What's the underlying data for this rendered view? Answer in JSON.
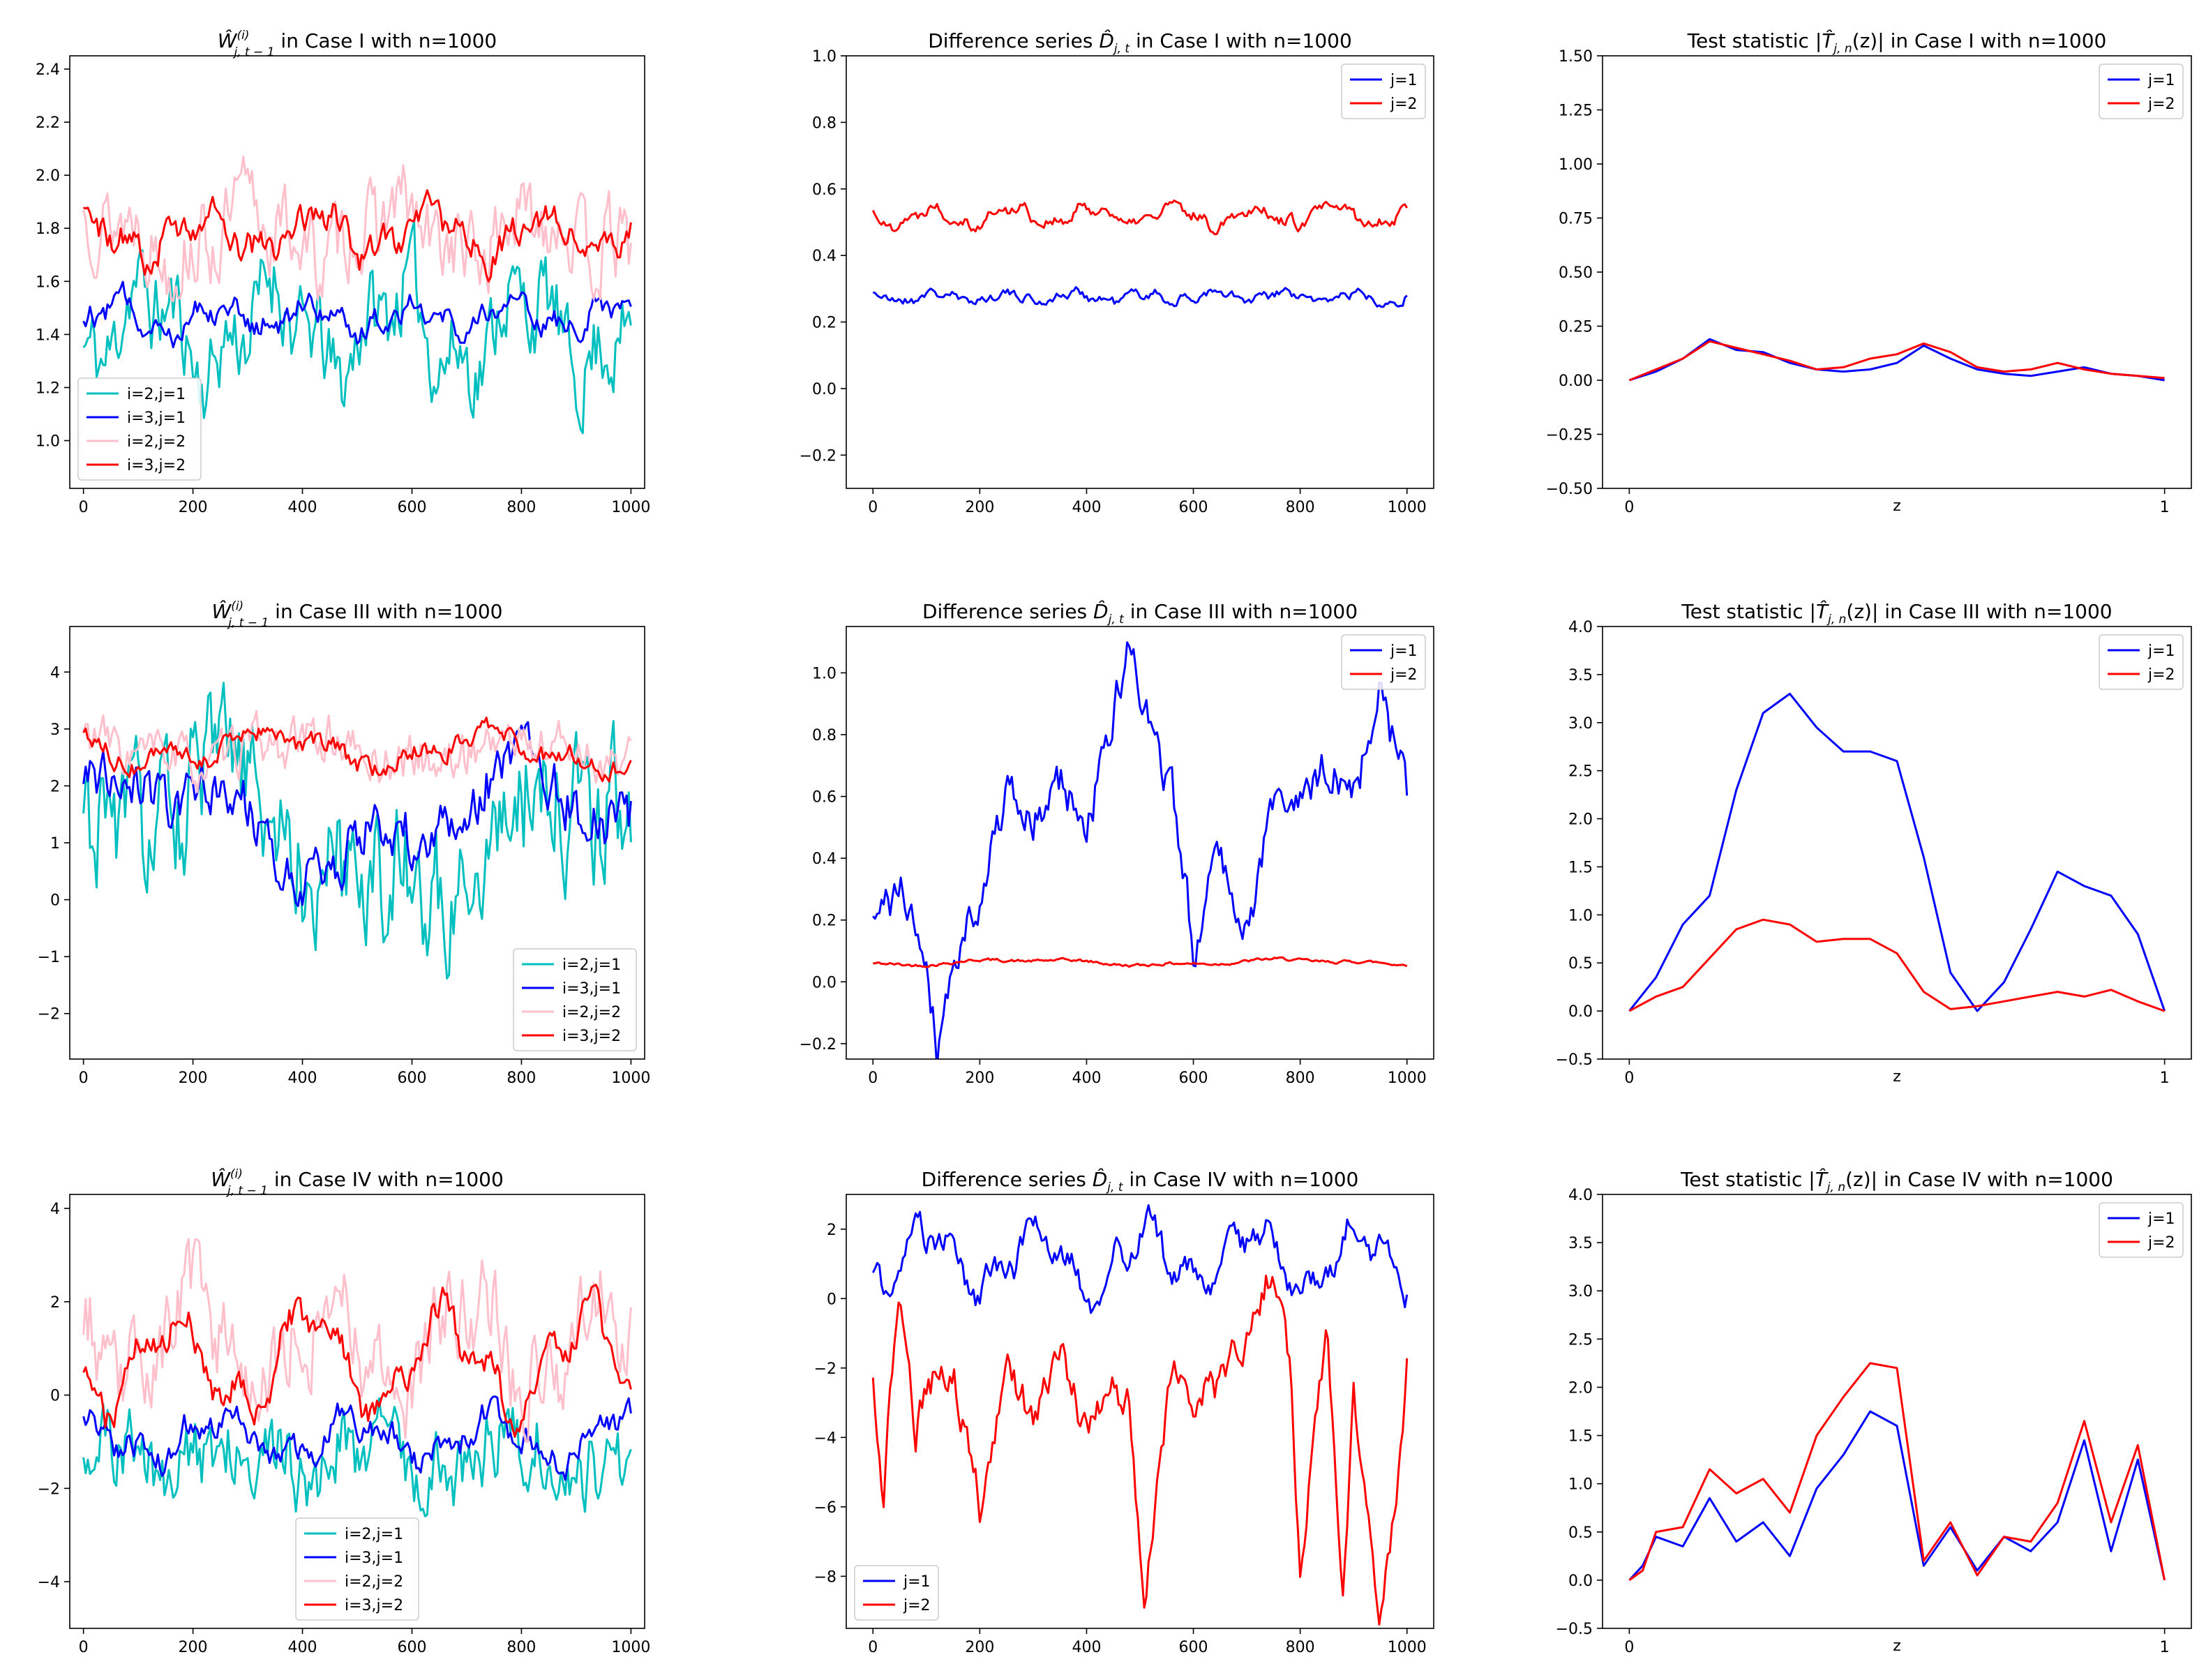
{
  "figure": {
    "background": "#ffffff"
  },
  "chart_data": [
    {
      "type": "line",
      "title": "W^(i)_{j,t−1} in Case I with n=1000",
      "title_parts": {
        "sym": "W",
        "sup": "(i)",
        "sub": "j, t − 1",
        "rest": " in Case I with n=1000"
      },
      "xlabel": "",
      "ylabel": "",
      "xlim": [
        -25,
        1025
      ],
      "ylim": [
        0.82,
        2.45
      ],
      "xticks": [
        0,
        200,
        400,
        600,
        800,
        1000
      ],
      "yticks": [
        1.0,
        1.2,
        1.4,
        1.6,
        1.8,
        2.0,
        2.2,
        2.4
      ],
      "legend_position": "lower-left",
      "series": [
        {
          "name": "i=2,j=1",
          "color": "#00bfbf",
          "gen": {
            "mean": 1.42,
            "amp": 0.14,
            "noise": 0.14,
            "period": 230,
            "seed": 11
          }
        },
        {
          "name": "i=3,j=1",
          "color": "#0000ff",
          "gen": {
            "mean": 1.47,
            "amp": 0.05,
            "noise": 0.04,
            "period": 180,
            "seed": 12
          }
        },
        {
          "name": "i=2,j=2",
          "color": "#ffc0cb",
          "gen": {
            "mean": 1.78,
            "amp": 0.08,
            "noise": 0.13,
            "period": 260,
            "seed": 13
          }
        },
        {
          "name": "i=3,j=2",
          "color": "#ff0000",
          "gen": {
            "mean": 1.78,
            "amp": 0.07,
            "noise": 0.05,
            "period": 210,
            "seed": 14
          }
        }
      ]
    },
    {
      "type": "line",
      "title": "Difference series D_{j,t} in Case I with n=1000",
      "title_parts": {
        "pre": "Difference series ",
        "sym": "D",
        "sub": "j, t",
        "rest": " in Case I with n=1000"
      },
      "xlabel": "",
      "ylabel": "",
      "xlim": [
        -50,
        1050
      ],
      "ylim": [
        -0.3,
        1.0
      ],
      "xticks": [
        0,
        200,
        400,
        600,
        800,
        1000
      ],
      "yticks": [
        -0.2,
        0.0,
        0.2,
        0.4,
        0.6,
        0.8,
        1.0
      ],
      "legend_position": "top-right",
      "series": [
        {
          "name": "j=1",
          "color": "#0000ff",
          "gen": {
            "mean": 0.275,
            "amp": 0.012,
            "noise": 0.012,
            "period": 130,
            "seed": 21
          }
        },
        {
          "name": "j=2",
          "color": "#ff0000",
          "gen": {
            "mean": 0.52,
            "amp": 0.025,
            "noise": 0.015,
            "period": 150,
            "seed": 22
          }
        }
      ]
    },
    {
      "type": "line",
      "title": "Test statistic |T_{j,n}(z)| in Case I with n=1000",
      "title_parts": {
        "pre": "Test statistic |",
        "sym": "T",
        "sub": "j, n",
        "rest": "(z)| in Case I with n=1000"
      },
      "xlabel": "z",
      "ylabel": "",
      "xlim": [
        -0.05,
        1.05
      ],
      "ylim": [
        -0.5,
        1.5
      ],
      "xticks": [
        0,
        1
      ],
      "yticks": [
        -0.5,
        -0.25,
        0.0,
        0.25,
        0.5,
        0.75,
        1.0,
        1.25,
        1.5
      ],
      "legend_position": "top-right",
      "series": [
        {
          "name": "j=1",
          "color": "#0000ff",
          "x": [
            0,
            0.05,
            0.1,
            0.15,
            0.2,
            0.25,
            0.3,
            0.35,
            0.4,
            0.45,
            0.5,
            0.55,
            0.6,
            0.65,
            0.7,
            0.75,
            0.8,
            0.85,
            0.9,
            0.95,
            1.0
          ],
          "y": [
            0.0,
            0.04,
            0.1,
            0.19,
            0.14,
            0.13,
            0.08,
            0.05,
            0.04,
            0.05,
            0.08,
            0.16,
            0.1,
            0.05,
            0.03,
            0.02,
            0.04,
            0.06,
            0.03,
            0.02,
            0.0
          ]
        },
        {
          "name": "j=2",
          "color": "#ff0000",
          "x": [
            0,
            0.05,
            0.1,
            0.15,
            0.2,
            0.25,
            0.3,
            0.35,
            0.4,
            0.45,
            0.5,
            0.55,
            0.6,
            0.65,
            0.7,
            0.75,
            0.8,
            0.85,
            0.9,
            0.95,
            1.0
          ],
          "y": [
            0.0,
            0.05,
            0.1,
            0.18,
            0.15,
            0.12,
            0.09,
            0.05,
            0.06,
            0.1,
            0.12,
            0.17,
            0.13,
            0.06,
            0.04,
            0.05,
            0.08,
            0.05,
            0.03,
            0.02,
            0.01
          ]
        }
      ]
    },
    {
      "type": "line",
      "title": "W^(i)_{j,t−1} in Case III with n=1000",
      "title_parts": {
        "sym": "W",
        "sup": "(i)",
        "sub": "j, t − 1",
        "rest": " in Case III with n=1000"
      },
      "xlabel": "",
      "ylabel": "",
      "xlim": [
        -25,
        1025
      ],
      "ylim": [
        -2.8,
        4.8
      ],
      "xticks": [
        0,
        200,
        400,
        600,
        800,
        1000
      ],
      "yticks": [
        -2,
        -1,
        0,
        1,
        2,
        3,
        4
      ],
      "legend_position": "lower-right",
      "series": [
        {
          "name": "i=2,j=1",
          "color": "#00bfbf",
          "gen": {
            "mean": 1.1,
            "amp": 0.9,
            "noise": 1.0,
            "period": 700,
            "seed": 31
          }
        },
        {
          "name": "i=3,j=1",
          "color": "#0000ff",
          "gen": {
            "mean": 1.4,
            "amp": 0.7,
            "noise": 0.4,
            "period": 700,
            "seed": 32
          }
        },
        {
          "name": "i=2,j=2",
          "color": "#ffc0cb",
          "gen": {
            "mean": 2.6,
            "amp": 0.2,
            "noise": 0.35,
            "period": 400,
            "seed": 33
          }
        },
        {
          "name": "i=3,j=2",
          "color": "#ff0000",
          "gen": {
            "mean": 2.65,
            "amp": 0.25,
            "noise": 0.15,
            "period": 400,
            "seed": 34
          }
        }
      ]
    },
    {
      "type": "line",
      "title": "Difference series D_{j,t} in Case III with n=1000",
      "title_parts": {
        "pre": "Difference series ",
        "sym": "D",
        "sub": "j, t",
        "rest": " in Case III with n=1000"
      },
      "xlabel": "",
      "ylabel": "",
      "xlim": [
        -50,
        1050
      ],
      "ylim": [
        -0.25,
        1.15
      ],
      "xticks": [
        0,
        200,
        400,
        600,
        800,
        1000
      ],
      "yticks": [
        -0.2,
        0.0,
        0.2,
        0.4,
        0.6,
        0.8,
        1.0
      ],
      "legend_position": "top-right",
      "series": [
        {
          "name": "j=1",
          "color": "#0000ff",
          "x": [
            0,
            50,
            100,
            120,
            150,
            200,
            250,
            300,
            350,
            400,
            450,
            480,
            520,
            560,
            600,
            650,
            700,
            750,
            800,
            850,
            900,
            950,
            1000
          ],
          "y": [
            0.17,
            0.3,
            0.1,
            -0.2,
            0.05,
            0.3,
            0.6,
            0.5,
            0.65,
            0.5,
            0.85,
            1.1,
            0.8,
            0.6,
            0.12,
            0.45,
            0.15,
            0.6,
            0.55,
            0.7,
            0.6,
            0.95,
            0.6
          ],
          "gen": {
            "noise": 0.06,
            "seed": 41
          }
        },
        {
          "name": "j=2",
          "color": "#ff0000",
          "gen": {
            "mean": 0.063,
            "amp": 0.008,
            "noise": 0.004,
            "period": 500,
            "seed": 42
          }
        }
      ]
    },
    {
      "type": "line",
      "title": "Test statistic |T_{j,n}(z)| in Case III with n=1000",
      "title_parts": {
        "pre": "Test statistic |",
        "sym": "T",
        "sub": "j, n",
        "rest": "(z)| in Case III with n=1000"
      },
      "xlabel": "z",
      "ylabel": "",
      "xlim": [
        -0.05,
        1.05
      ],
      "ylim": [
        -0.5,
        4.0
      ],
      "xticks": [
        0,
        1
      ],
      "yticks": [
        -0.5,
        0.0,
        0.5,
        1.0,
        1.5,
        2.0,
        2.5,
        3.0,
        3.5,
        4.0
      ],
      "legend_position": "top-right",
      "series": [
        {
          "name": "j=1",
          "color": "#0000ff",
          "x": [
            0,
            0.05,
            0.1,
            0.15,
            0.2,
            0.25,
            0.3,
            0.35,
            0.4,
            0.45,
            0.5,
            0.55,
            0.6,
            0.65,
            0.7,
            0.75,
            0.8,
            0.85,
            0.9,
            0.95,
            1.0
          ],
          "y": [
            0.0,
            0.35,
            0.9,
            1.2,
            2.3,
            3.1,
            3.3,
            2.95,
            2.7,
            2.7,
            2.6,
            1.6,
            0.4,
            0.0,
            0.3,
            0.85,
            1.45,
            1.3,
            1.2,
            0.8,
            0.0
          ]
        },
        {
          "name": "j=2",
          "color": "#ff0000",
          "x": [
            0,
            0.05,
            0.1,
            0.15,
            0.2,
            0.25,
            0.3,
            0.35,
            0.4,
            0.45,
            0.5,
            0.55,
            0.6,
            0.65,
            0.7,
            0.75,
            0.8,
            0.85,
            0.9,
            0.95,
            1.0
          ],
          "y": [
            0.0,
            0.15,
            0.25,
            0.55,
            0.85,
            0.95,
            0.9,
            0.72,
            0.75,
            0.75,
            0.6,
            0.2,
            0.02,
            0.05,
            0.1,
            0.15,
            0.2,
            0.15,
            0.22,
            0.1,
            0.0
          ]
        }
      ]
    },
    {
      "type": "line",
      "title": "W^(i)_{j,t−1} in Case IV with n=1000",
      "title_parts": {
        "sym": "W",
        "sup": "(i)",
        "sub": "j, t − 1",
        "rest": " in Case IV with n=1000"
      },
      "xlabel": "",
      "ylabel": "",
      "xlim": [
        -25,
        1025
      ],
      "ylim": [
        -5.0,
        4.3
      ],
      "xticks": [
        0,
        200,
        400,
        600,
        800,
        1000
      ],
      "yticks": [
        -4,
        -2,
        0,
        2,
        4
      ],
      "legend_position": "lower-center",
      "series": [
        {
          "name": "i=2,j=1",
          "color": "#00bfbf",
          "gen": {
            "mean": -1.3,
            "amp": 0.4,
            "noise": 0.7,
            "period": 250,
            "seed": 51
          }
        },
        {
          "name": "i=3,j=1",
          "color": "#0000ff",
          "gen": {
            "mean": -0.9,
            "amp": 0.4,
            "noise": 0.25,
            "period": 250,
            "seed": 52
          }
        },
        {
          "name": "i=2,j=2",
          "color": "#ffc0cb",
          "gen": {
            "mean": 1.2,
            "amp": 0.9,
            "noise": 0.8,
            "period": 250,
            "seed": 53
          }
        },
        {
          "name": "i=3,j=2",
          "color": "#ff0000",
          "gen": {
            "mean": 0.7,
            "amp": 0.9,
            "noise": 0.3,
            "period": 250,
            "seed": 54
          }
        }
      ]
    },
    {
      "type": "line",
      "title": "Difference series D_{j,t} in Case IV with n=1000",
      "title_parts": {
        "pre": "Difference series ",
        "sym": "D",
        "sub": "j, t",
        "rest": " in Case IV with n=1000"
      },
      "xlabel": "",
      "ylabel": "",
      "xlim": [
        -50,
        1050
      ],
      "ylim": [
        -9.5,
        3.0
      ],
      "xticks": [
        0,
        200,
        400,
        600,
        800,
        1000
      ],
      "yticks": [
        -8,
        -6,
        -4,
        -2,
        0,
        2
      ],
      "legend_position": "lower-left",
      "series": [
        {
          "name": "j=1",
          "color": "#0000ff",
          "gen": {
            "mean": 1.1,
            "amp": 0.8,
            "noise": 0.35,
            "period": 200,
            "seed": 61
          }
        },
        {
          "name": "j=2",
          "color": "#ff0000",
          "x": [
            0,
            20,
            50,
            80,
            100,
            150,
            200,
            250,
            300,
            350,
            400,
            450,
            480,
            510,
            530,
            560,
            600,
            650,
            700,
            750,
            780,
            800,
            850,
            880,
            900,
            950,
            980,
            1000
          ],
          "y": [
            -2.5,
            -5.5,
            0.5,
            -4,
            -2.5,
            -2,
            -6,
            -2,
            -3.5,
            -1.5,
            -4,
            -2.5,
            -3,
            -8.8,
            -6,
            -2,
            -3,
            -2.5,
            -1,
            1,
            -2,
            -7.5,
            -1,
            -8,
            -3,
            -9,
            -6,
            -2.2
          ],
          "gen": {
            "noise": 0.45,
            "seed": 62
          }
        }
      ]
    },
    {
      "type": "line",
      "title": "Test statistic |T_{j,n}(z)| in Case IV with n=1000",
      "title_parts": {
        "pre": "Test statistic |",
        "sym": "T",
        "sub": "j, n",
        "rest": "(z)| in Case IV with n=1000"
      },
      "xlabel": "z",
      "ylabel": "",
      "xlim": [
        -0.05,
        1.05
      ],
      "ylim": [
        -0.5,
        4.0
      ],
      "xticks": [
        0,
        1
      ],
      "yticks": [
        -0.5,
        0.0,
        0.5,
        1.0,
        1.5,
        2.0,
        2.5,
        3.0,
        3.5,
        4.0
      ],
      "legend_position": "top-right",
      "series": [
        {
          "name": "j=1",
          "color": "#0000ff",
          "x": [
            0,
            0.025,
            0.05,
            0.1,
            0.15,
            0.2,
            0.25,
            0.3,
            0.35,
            0.4,
            0.45,
            0.5,
            0.55,
            0.6,
            0.65,
            0.7,
            0.75,
            0.8,
            0.85,
            0.9,
            0.95,
            1.0
          ],
          "y": [
            0.0,
            0.15,
            0.45,
            0.35,
            0.85,
            0.4,
            0.6,
            0.25,
            0.95,
            1.3,
            1.75,
            1.6,
            0.15,
            0.55,
            0.1,
            0.45,
            0.3,
            0.6,
            1.45,
            0.3,
            1.25,
            0.0
          ]
        },
        {
          "name": "j=2",
          "color": "#ff0000",
          "x": [
            0,
            0.025,
            0.05,
            0.1,
            0.15,
            0.2,
            0.25,
            0.3,
            0.35,
            0.4,
            0.45,
            0.5,
            0.55,
            0.6,
            0.65,
            0.7,
            0.75,
            0.8,
            0.85,
            0.9,
            0.95,
            1.0
          ],
          "y": [
            0.0,
            0.1,
            0.5,
            0.55,
            1.15,
            0.9,
            1.05,
            0.7,
            1.5,
            1.9,
            2.25,
            2.2,
            0.2,
            0.6,
            0.05,
            0.45,
            0.4,
            0.8,
            1.65,
            0.6,
            1.4,
            0.0
          ]
        }
      ]
    }
  ]
}
